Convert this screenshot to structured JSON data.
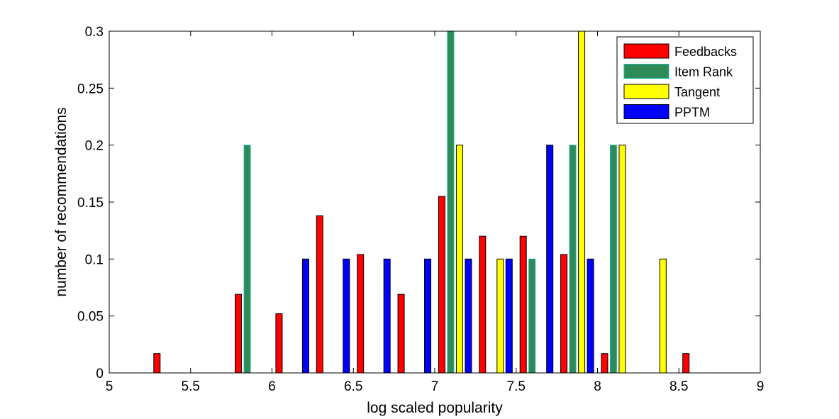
{
  "chart_data": {
    "type": "bar",
    "xlabel": "log scaled popularity",
    "ylabel": "number of recommendations",
    "xlim": [
      5,
      9
    ],
    "ylim": [
      0,
      0.3
    ],
    "xticks": [
      "5",
      "5.5",
      "6",
      "6.5",
      "7",
      "7.5",
      "8",
      "8.5",
      "9"
    ],
    "yticks": [
      "0",
      "0.05",
      "0.1",
      "0.15",
      "0.2",
      "0.25",
      "0.3"
    ],
    "legend_position": "top-right",
    "bin_centers": [
      5.125,
      5.375,
      5.625,
      5.875,
      6.125,
      6.375,
      6.625,
      6.875,
      7.125,
      7.375,
      7.625,
      7.875,
      8.125,
      8.375,
      8.625,
      8.875
    ],
    "series": [
      {
        "name": "Feedbacks",
        "color": "#ff0000",
        "values": [
          0,
          0.017,
          0,
          0.069,
          0.052,
          0.138,
          0.104,
          0.069,
          0.155,
          0.12,
          0.12,
          0.104,
          0.017,
          0,
          0.017,
          0
        ]
      },
      {
        "name": "Item Rank",
        "color": "#2e8b57",
        "edge": "#1fb3a8",
        "values": [
          0,
          0,
          0,
          0.2,
          0,
          0,
          0,
          0,
          0.3,
          0,
          0.1,
          0.2,
          0.2,
          0,
          0,
          0
        ]
      },
      {
        "name": "Tangent",
        "color": "#ffff00",
        "values": [
          0,
          0,
          0,
          0,
          0,
          0,
          0,
          0,
          0.2,
          0.1,
          0,
          0.3,
          0.2,
          0.1,
          0,
          0
        ]
      },
      {
        "name": "PPTM",
        "color": "#0000ff",
        "values": [
          0,
          0,
          0,
          0,
          0.1,
          0.1,
          0.1,
          0.1,
          0.1,
          0.1,
          0.2,
          0.1,
          0,
          0,
          0,
          0
        ]
      }
    ]
  }
}
